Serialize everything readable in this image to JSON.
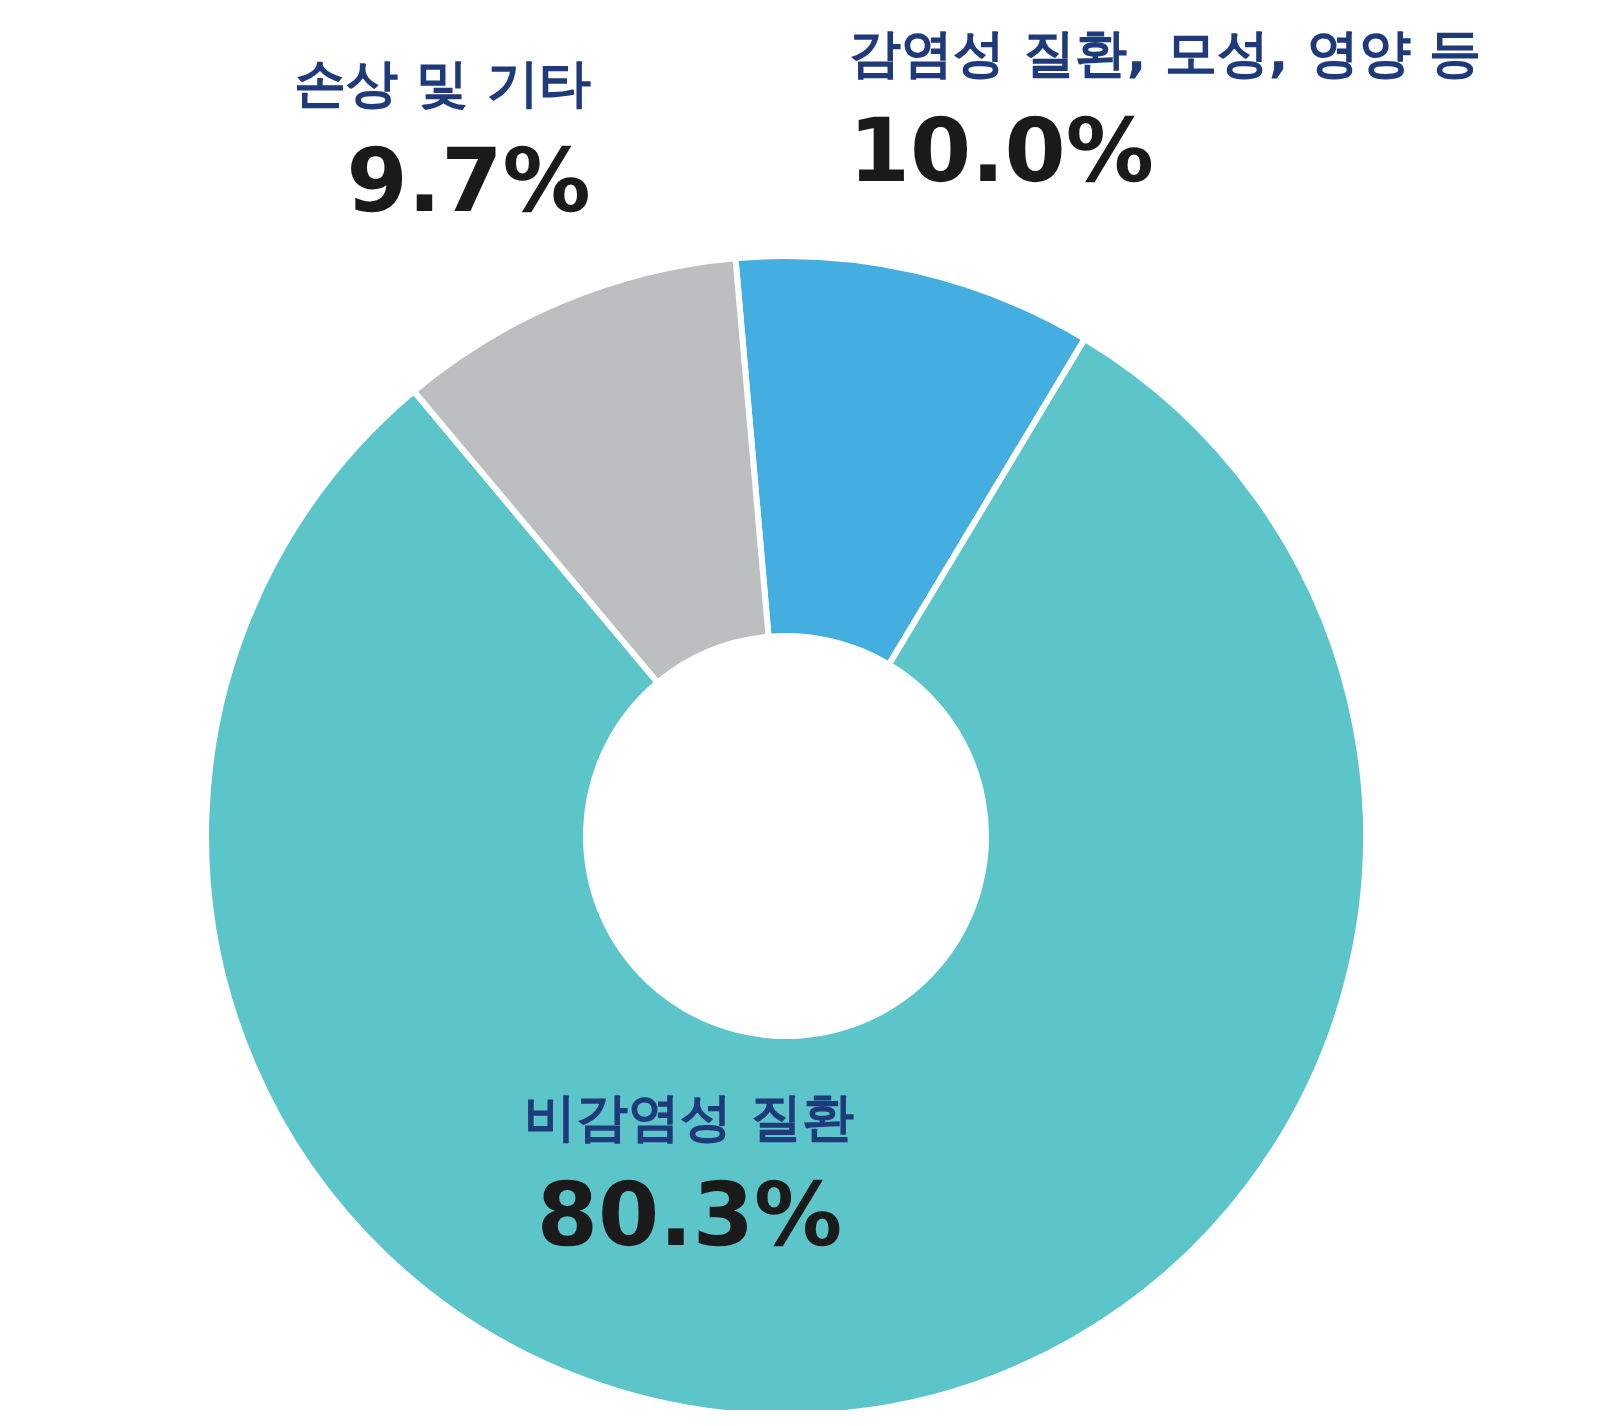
{
  "chart_data": {
    "type": "donut",
    "categories": [
      "감염성 질환, 모성, 영양 등",
      "비감염성 질환",
      "손상 및 기타"
    ],
    "values": [
      10.0,
      80.3,
      9.7
    ],
    "colors": [
      "#45aee0",
      "#5bc5c9",
      "#bdbec0"
    ],
    "value_labels": [
      "10.0%",
      "80.3%",
      "9.7%"
    ]
  }
}
